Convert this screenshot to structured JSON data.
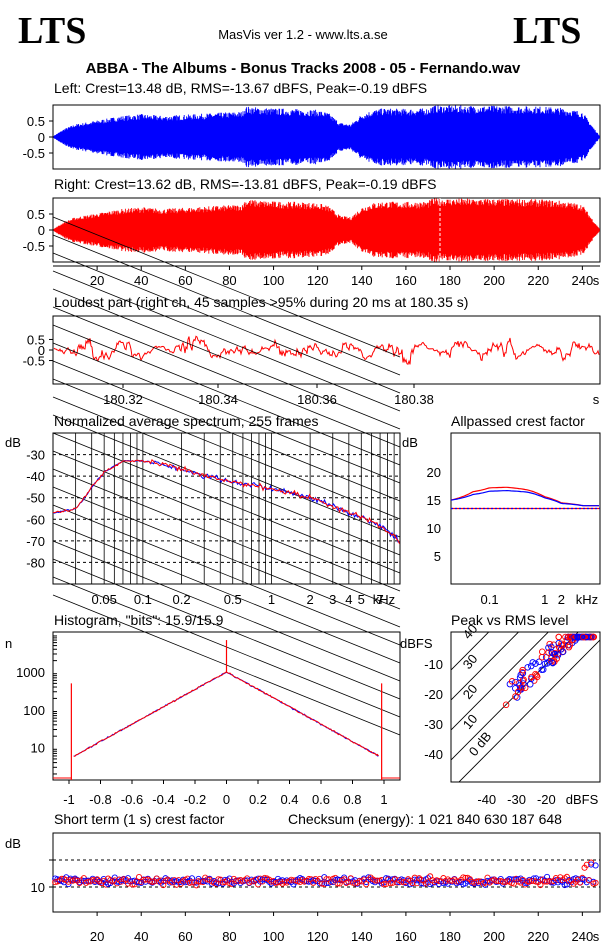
{
  "header": {
    "logo_left": "LTS",
    "logo_right": "LTS",
    "app": "MasVis ver 1.2 - www.lts.a.se",
    "file_title": "ABBA - The Albums - Bonus Tracks 2008 - 05 - Fernando.wav"
  },
  "colors": {
    "left": "#0000ff",
    "right": "#ff0000"
  },
  "panels": {
    "left": {
      "title": "Left: Crest=13.48 dB, RMS=-13.67 dBFS, Peak=-0.19 dBFS",
      "yticks": [
        "0.5",
        "0",
        "-0.5"
      ]
    },
    "right": {
      "title": "Right: Crest=13.62 dB, RMS=-13.81 dBFS, Peak=-0.19 dBFS",
      "yticks": [
        "0.5",
        "0",
        "-0.5"
      ],
      "xticks": [
        "20",
        "40",
        "60",
        "80",
        "100",
        "120",
        "140",
        "160",
        "180",
        "200",
        "220",
        "240"
      ],
      "xunit": "s"
    },
    "loudest": {
      "title": "Loudest part (right ch, 45 samples >95% during 20 ms at 180.35 s)",
      "yticks": [
        "0.5",
        "0",
        "-0.5"
      ],
      "xticks": [
        "180.32",
        "180.34",
        "180.36",
        "180.38"
      ],
      "xunit": "s"
    },
    "spectrum": {
      "title": "Normalized average spectrum, 255 frames",
      "ylabel": "dB",
      "yticks": [
        "-30",
        "-40",
        "-50",
        "-60",
        "-70",
        "-80"
      ],
      "xticks": [
        "0.05",
        "0.1",
        "0.2",
        "0.5",
        "1",
        "2",
        "3",
        "4",
        "5",
        "7"
      ],
      "xunit": "kHz"
    },
    "crest": {
      "title": "Allpassed crest factor",
      "ylabel": "dB",
      "yticks": [
        "20",
        "15",
        "10",
        "5"
      ],
      "xticks": [
        "0.1",
        "1",
        "2"
      ],
      "xunit": "kHz"
    },
    "histogram": {
      "title": "Histogram, \"bits\": 15.9/15.9",
      "ylabel": "n",
      "yticks": [
        "1000",
        "100",
        "10"
      ],
      "xticks": [
        "-1",
        "-0.8",
        "-0.6",
        "-0.4",
        "-0.2",
        "0",
        "0.2",
        "0.4",
        "0.6",
        "0.8",
        "1"
      ]
    },
    "peakrms": {
      "title": "Peak vs RMS level",
      "ylabel": "dBFS",
      "yticks": [
        "-10",
        "-20",
        "-30",
        "-40"
      ],
      "xticks": [
        "-40",
        "-30",
        "-20"
      ],
      "xunit": "dBFS",
      "diag_labels": [
        "40",
        "30",
        "20",
        "10",
        "0 dB"
      ]
    },
    "shortcrest": {
      "title": "Short term (1 s) crest factor",
      "checksum": "Checksum (energy):  1 021 840 630 187 648",
      "ylabel": "dB",
      "yticks": [
        "10"
      ],
      "xticks": [
        "20",
        "40",
        "60",
        "80",
        "100",
        "120",
        "140",
        "160",
        "180",
        "200",
        "220",
        "240"
      ],
      "xunit": "s"
    }
  },
  "chart_data": [
    {
      "type": "area",
      "title": "Left: Crest=13.48 dB, RMS=-13.67 dBFS, Peak=-0.19 dBFS",
      "x_range": [
        0,
        248
      ],
      "ylim": [
        -1,
        1
      ],
      "envelope_t": [
        0,
        5,
        10,
        20,
        30,
        40,
        50,
        60,
        70,
        80,
        86,
        87,
        95,
        100,
        110,
        120,
        125,
        130,
        135,
        140,
        145,
        150,
        160,
        170,
        172,
        180,
        190,
        200,
        210,
        220,
        230,
        240,
        245,
        248
      ],
      "envelope_amp": [
        0.02,
        0.25,
        0.4,
        0.52,
        0.65,
        0.72,
        0.66,
        0.7,
        0.74,
        0.78,
        0.8,
        0.96,
        0.92,
        0.9,
        0.88,
        0.85,
        0.75,
        0.45,
        0.4,
        0.72,
        0.85,
        0.9,
        0.88,
        0.9,
        0.99,
        0.99,
        0.98,
        0.98,
        0.97,
        0.96,
        0.92,
        0.8,
        0.3,
        0.02
      ]
    },
    {
      "type": "area",
      "title": "Right: Crest=13.62 dB, RMS=-13.81 dBFS, Peak=-0.19 dBFS",
      "x_range": [
        0,
        248
      ],
      "ylim": [
        -1,
        1
      ],
      "envelope_t": [
        0,
        5,
        10,
        20,
        30,
        40,
        50,
        60,
        70,
        80,
        86,
        87,
        95,
        100,
        110,
        120,
        125,
        130,
        135,
        140,
        145,
        150,
        160,
        170,
        172,
        180,
        190,
        200,
        210,
        220,
        230,
        240,
        245,
        248
      ],
      "envelope_amp": [
        0.02,
        0.25,
        0.4,
        0.52,
        0.65,
        0.72,
        0.66,
        0.7,
        0.74,
        0.78,
        0.8,
        0.96,
        0.92,
        0.9,
        0.88,
        0.85,
        0.75,
        0.45,
        0.4,
        0.72,
        0.85,
        0.9,
        0.88,
        0.9,
        0.99,
        0.99,
        0.98,
        0.98,
        0.97,
        0.96,
        0.92,
        0.8,
        0.3,
        0.02
      ]
    },
    {
      "type": "line",
      "title": "Loudest part (right ch, 45 samples >95% during 20 ms at 180.35 s)",
      "x_range": [
        180.3,
        180.4
      ],
      "ylim": [
        -1,
        1
      ]
    },
    {
      "type": "line",
      "title": "Normalized average spectrum, 255 frames",
      "x_kHz": [
        0.02,
        0.03,
        0.04,
        0.05,
        0.07,
        0.1,
        0.15,
        0.2,
        0.3,
        0.5,
        0.7,
        1,
        1.5,
        2,
        3,
        4,
        5,
        7,
        9,
        10
      ],
      "series": [
        {
          "values": [
            -57,
            -55,
            -45,
            -38,
            -33,
            -33,
            -35,
            -37,
            -40,
            -43,
            -44,
            -46,
            -48,
            -50,
            -54,
            -57,
            -59,
            -63,
            -68,
            -71
          ]
        }
      ],
      "ylim": [
        -90,
        -20
      ]
    },
    {
      "type": "line",
      "title": "Allpassed crest factor",
      "x_kHz": [
        0.02,
        0.05,
        0.1,
        0.2,
        0.5,
        1,
        2,
        5,
        10
      ],
      "series": [
        {
          "values": [
            15,
            16.5,
            17.2,
            17.3,
            16.8,
            15.6,
            14.5,
            14,
            14
          ]
        },
        {
          "values": [
            15,
            16,
            16.6,
            16.7,
            16.4,
            15.4,
            14.4,
            14,
            14
          ]
        }
      ],
      "ylim": [
        0,
        25
      ]
    },
    {
      "type": "line",
      "title": "Histogram, \"bits\": 15.9/15.9",
      "xlim": [
        -1,
        1
      ],
      "y_log": true,
      "x": [
        -1,
        -0.95,
        -0.5,
        0,
        0.5,
        0.95,
        1
      ],
      "series": [
        {
          "values": [
            200,
            5,
            80,
            1000,
            80,
            5,
            200
          ]
        }
      ]
    },
    {
      "type": "scatter",
      "title": "Peak vs RMS level",
      "xlim": [
        -50,
        -10
      ],
      "ylim": [
        -50,
        0
      ]
    },
    {
      "type": "scatter",
      "title": "Short term (1 s) crest factor",
      "x_range": [
        0,
        248
      ],
      "y_mean": 11
    }
  ]
}
